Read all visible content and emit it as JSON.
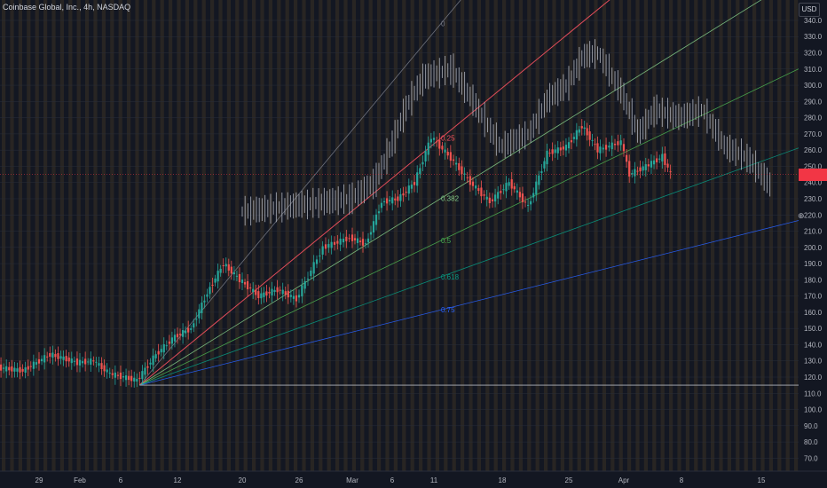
{
  "header": {
    "symbol_name": "Coinbase Global, Inc.",
    "interval": "4h",
    "exchange": "NASDAQ"
  },
  "price_scale": {
    "currency": "USD",
    "last_price_label": ""
  },
  "colors": {
    "background": "#131722",
    "up": "#26a69a",
    "down": "#ef5350",
    "ghost": "#b2b5be",
    "stripe": "#c68a2e",
    "fan_0": "#787b86",
    "fan_025": "#f7525f",
    "fan_0382": "#81c784",
    "fan_05": "#4caf50",
    "fan_0618": "#089981",
    "fan_075": "#2962ff",
    "price_tag": "#f23645"
  },
  "chart_data": {
    "type": "candlestick",
    "y_range": [
      62,
      346
    ],
    "y_ticks": [
      70,
      80,
      90,
      100,
      110,
      120,
      130,
      140,
      150,
      160,
      170,
      180,
      190,
      200,
      210,
      220,
      230,
      240,
      250,
      260,
      270,
      280,
      290,
      300,
      310,
      320,
      330,
      340
    ],
    "x_labels": [
      "29",
      "Feb",
      "6",
      "12",
      "20",
      "26",
      "Mar",
      "6",
      "11",
      "18",
      "25",
      "Apr",
      "8",
      "15"
    ],
    "fan": {
      "origin": {
        "date": "Feb 8",
        "price": 115
      },
      "levels": [
        {
          "label": "0",
          "name": "0"
        },
        {
          "label": "0.25",
          "name": "0.25"
        },
        {
          "label": "0.382",
          "name": "0.382"
        },
        {
          "label": "0.5",
          "name": "0.5"
        },
        {
          "label": "0.618",
          "name": "0.618"
        },
        {
          "label": "0.75",
          "name": "0.75"
        },
        {
          "label": "",
          "name": "1"
        }
      ]
    },
    "ghost_path": [
      {
        "x": "Feb 20",
        "price": 222
      },
      {
        "x": "Feb 26",
        "price": 226
      },
      {
        "x": "Mar 1",
        "price": 230
      },
      {
        "x": "Mar 4",
        "price": 240
      },
      {
        "x": "Mar 6",
        "price": 262
      },
      {
        "x": "Mar 8",
        "price": 288
      },
      {
        "x": "Mar 10",
        "price": 305
      },
      {
        "x": "Mar 13",
        "price": 310
      },
      {
        "x": "Mar 15",
        "price": 292
      },
      {
        "x": "Mar 18",
        "price": 262
      },
      {
        "x": "Mar 21",
        "price": 270
      },
      {
        "x": "Mar 23",
        "price": 292
      },
      {
        "x": "Mar 25",
        "price": 300
      },
      {
        "x": "Mar 27",
        "price": 318
      },
      {
        "x": "Mar 29",
        "price": 320
      },
      {
        "x": "Apr 1",
        "price": 295
      },
      {
        "x": "Apr 3",
        "price": 270
      },
      {
        "x": "Apr 5",
        "price": 285
      },
      {
        "x": "Apr 8",
        "price": 280
      },
      {
        "x": "Apr 10",
        "price": 285
      },
      {
        "x": "Apr 12",
        "price": 262
      },
      {
        "x": "Apr 14",
        "price": 255
      },
      {
        "x": "Apr 16",
        "price": 238
      }
    ],
    "price_path": [
      {
        "x": "Jan 26",
        "price": 126
      },
      {
        "x": "Jan 28",
        "price": 124
      },
      {
        "x": "Jan 30",
        "price": 134
      },
      {
        "x": "Feb 1",
        "price": 129
      },
      {
        "x": "Feb 3",
        "price": 130
      },
      {
        "x": "Feb 5",
        "price": 122
      },
      {
        "x": "Feb 8",
        "price": 118
      },
      {
        "x": "Feb 10",
        "price": 134
      },
      {
        "x": "Feb 12",
        "price": 145
      },
      {
        "x": "Feb 14",
        "price": 150
      },
      {
        "x": "Feb 16",
        "price": 172
      },
      {
        "x": "Feb 18",
        "price": 190
      },
      {
        "x": "Feb 20",
        "price": 180
      },
      {
        "x": "Feb 22",
        "price": 170
      },
      {
        "x": "Feb 24",
        "price": 174
      },
      {
        "x": "Feb 26",
        "price": 168
      },
      {
        "x": "Feb 28",
        "price": 200
      },
      {
        "x": "Mar 1",
        "price": 206
      },
      {
        "x": "Mar 3",
        "price": 202
      },
      {
        "x": "Mar 5",
        "price": 228
      },
      {
        "x": "Mar 7",
        "price": 230
      },
      {
        "x": "Mar 9",
        "price": 240
      },
      {
        "x": "Mar 11",
        "price": 268
      },
      {
        "x": "Mar 13",
        "price": 255
      },
      {
        "x": "Mar 15",
        "price": 240
      },
      {
        "x": "Mar 17",
        "price": 228
      },
      {
        "x": "Mar 19",
        "price": 240
      },
      {
        "x": "Mar 21",
        "price": 225
      },
      {
        "x": "Mar 23",
        "price": 258
      },
      {
        "x": "Mar 25",
        "price": 262
      },
      {
        "x": "Mar 27",
        "price": 275
      },
      {
        "x": "Mar 29",
        "price": 260
      },
      {
        "x": "Apr 1",
        "price": 265
      },
      {
        "x": "Apr 2",
        "price": 245
      },
      {
        "x": "Apr 4",
        "price": 250
      },
      {
        "x": "Apr 6",
        "price": 256
      },
      {
        "x": "Apr 7",
        "price": 245
      }
    ]
  }
}
